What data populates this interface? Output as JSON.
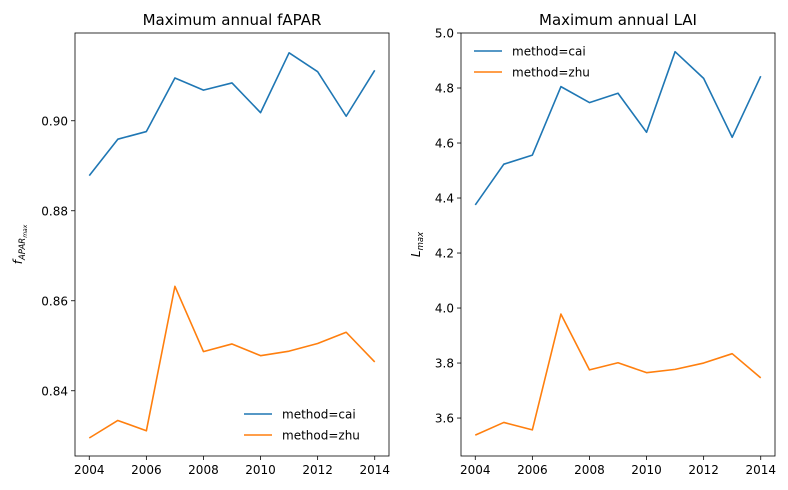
{
  "chart_data": [
    {
      "type": "line",
      "title": "Maximum annual fAPAR",
      "xlabel": "",
      "ylabel": "f",
      "ylabel_sub": "APAR",
      "ylabel_subsub": "max",
      "xlim": [
        2003.5,
        2014.5
      ],
      "ylim": [
        0.8255,
        0.9195
      ],
      "xticks": [
        2004,
        2006,
        2008,
        2010,
        2012,
        2014
      ],
      "yticks": [
        0.84,
        0.86,
        0.88,
        0.9
      ],
      "ytick_labels": [
        "0.84",
        "0.86",
        "0.88",
        "0.90"
      ],
      "legend_position": "lower-right",
      "x": [
        2004,
        2005,
        2006,
        2007,
        2008,
        2009,
        2010,
        2011,
        2012,
        2013,
        2014
      ],
      "series": [
        {
          "name": "method=cai",
          "color": "#1f77b4",
          "values": [
            0.8878,
            0.8959,
            0.8976,
            0.9095,
            0.9068,
            0.9084,
            0.9018,
            0.9151,
            0.9109,
            0.901,
            0.9112
          ]
        },
        {
          "name": "method=zhu",
          "color": "#ff7f0e",
          "values": [
            0.8295,
            0.8334,
            0.8311,
            0.8632,
            0.8487,
            0.8504,
            0.8478,
            0.8488,
            0.8505,
            0.853,
            0.8464
          ]
        }
      ]
    },
    {
      "type": "line",
      "title": "Maximum annual LAI",
      "xlabel": "",
      "ylabel": "L",
      "ylabel_sub": "max",
      "xlim": [
        2003.5,
        2014.5
      ],
      "ylim": [
        3.462,
        5.0
      ],
      "xticks": [
        2004,
        2006,
        2008,
        2010,
        2012,
        2014
      ],
      "yticks": [
        3.6,
        3.8,
        4.0,
        4.2,
        4.4,
        4.6,
        4.8,
        5.0
      ],
      "ytick_labels": [
        "3.6",
        "3.8",
        "4.0",
        "4.2",
        "4.4",
        "4.6",
        "4.8",
        "5.0"
      ],
      "legend_position": "upper-left",
      "x": [
        2004,
        2005,
        2006,
        2007,
        2008,
        2009,
        2010,
        2011,
        2012,
        2013,
        2014
      ],
      "series": [
        {
          "name": "method=cai",
          "color": "#1f77b4",
          "values": [
            4.375,
            4.523,
            4.556,
            4.805,
            4.747,
            4.781,
            4.639,
            4.932,
            4.835,
            4.621,
            4.843
          ]
        },
        {
          "name": "method=zhu",
          "color": "#ff7f0e",
          "values": [
            3.538,
            3.584,
            3.557,
            3.978,
            3.775,
            3.801,
            3.765,
            3.777,
            3.8,
            3.834,
            3.746
          ]
        }
      ]
    }
  ]
}
